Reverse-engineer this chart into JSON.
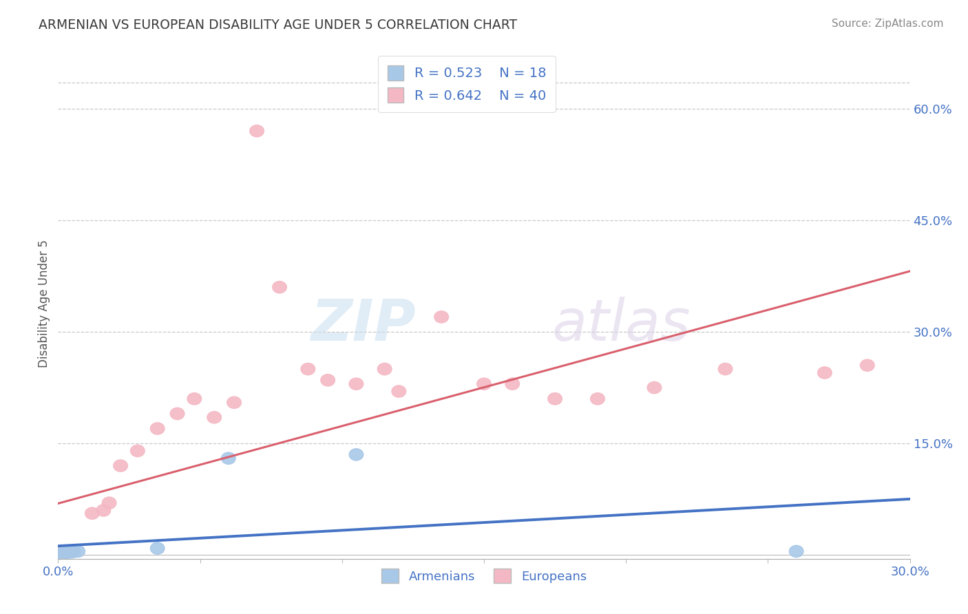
{
  "title": "ARMENIAN VS EUROPEAN DISABILITY AGE UNDER 5 CORRELATION CHART",
  "source": "Source: ZipAtlas.com",
  "ylabel": "Disability Age Under 5",
  "ytick_labels": [
    "15.0%",
    "30.0%",
    "45.0%",
    "60.0%"
  ],
  "ytick_values": [
    0.15,
    0.3,
    0.45,
    0.6
  ],
  "xlim": [
    0.0,
    0.3
  ],
  "ylim": [
    -0.005,
    0.68
  ],
  "armenian_R": 0.523,
  "armenian_N": 18,
  "european_R": 0.642,
  "european_N": 40,
  "armenian_color": "#a8c8e8",
  "armenian_line_color": "#4472c4",
  "european_color": "#f4b8c4",
  "european_line_color": "#d9606e",
  "background_color": "#ffffff",
  "grid_color": "#c8c8c8",
  "title_color": "#3a3a3a",
  "legend_text_color": "#4472c4",
  "arm_x": [
    0.001,
    0.0015,
    0.0018,
    0.002,
    0.0022,
    0.0025,
    0.0028,
    0.003,
    0.0035,
    0.004,
    0.0045,
    0.005,
    0.0055,
    0.007,
    0.035,
    0.06,
    0.105,
    0.26
  ],
  "arm_y": [
    0.002,
    0.002,
    0.0025,
    0.0025,
    0.003,
    0.003,
    0.003,
    0.0035,
    0.0035,
    0.004,
    0.004,
    0.004,
    0.0045,
    0.005,
    0.009,
    0.13,
    0.135,
    0.005
  ],
  "eur_x": [
    0.0008,
    0.001,
    0.0012,
    0.0015,
    0.0018,
    0.002,
    0.0022,
    0.0025,
    0.0028,
    0.003,
    0.0035,
    0.004,
    0.0045,
    0.005,
    0.012,
    0.016,
    0.018,
    0.022,
    0.028,
    0.035,
    0.042,
    0.048,
    0.055,
    0.062,
    0.07,
    0.078,
    0.088,
    0.095,
    0.105,
    0.115,
    0.12,
    0.135,
    0.15,
    0.16,
    0.175,
    0.19,
    0.21,
    0.235,
    0.27,
    0.285
  ],
  "eur_y": [
    0.002,
    0.0022,
    0.0025,
    0.0025,
    0.0028,
    0.003,
    0.0032,
    0.0035,
    0.0035,
    0.004,
    0.004,
    0.0045,
    0.0045,
    0.005,
    0.056,
    0.06,
    0.07,
    0.12,
    0.14,
    0.17,
    0.19,
    0.21,
    0.185,
    0.205,
    0.57,
    0.36,
    0.25,
    0.235,
    0.23,
    0.25,
    0.22,
    0.32,
    0.23,
    0.23,
    0.21,
    0.21,
    0.225,
    0.25,
    0.245,
    0.255
  ]
}
